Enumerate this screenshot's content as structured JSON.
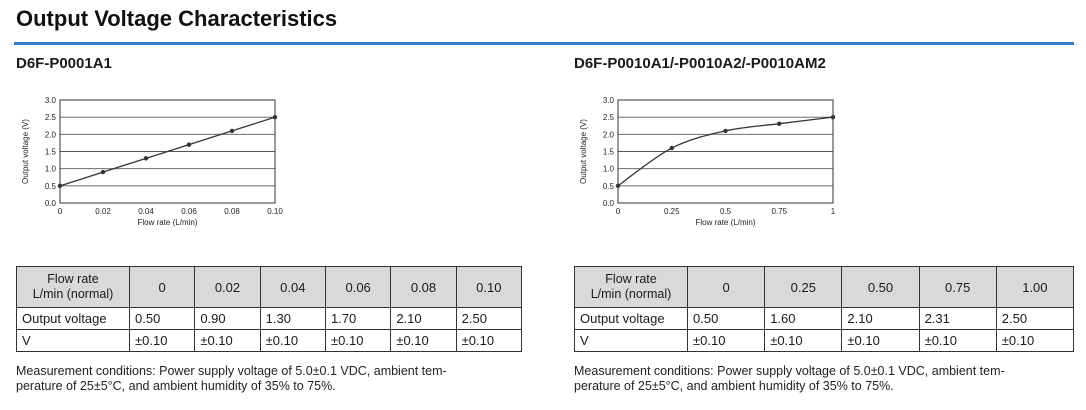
{
  "page_title": "Output Voltage Characteristics",
  "sections": [
    {
      "model": "D6F-P0001A1",
      "table": {
        "header_line1": "Flow rate",
        "header_line2": "L/min (normal)",
        "flow_rates": [
          "0",
          "0.02",
          "0.04",
          "0.06",
          "0.08",
          "0.10"
        ],
        "voltage_label": "Output voltage",
        "voltages": [
          "0.50",
          "0.90",
          "1.30",
          "1.70",
          "2.10",
          "2.50"
        ],
        "unit_label": "V",
        "tolerances": [
          "±0.10",
          "±0.10",
          "±0.10",
          "±0.10",
          "±0.10",
          "±0.10"
        ]
      },
      "note_line1": "Measurement conditions: Power supply voltage of 5.0±0.1 VDC, ambient tem-",
      "note_line2": "perature of 25±5°C, and ambient humidity of 35% to 75%."
    },
    {
      "model": "D6F-P0010A1/-P0010A2/-P0010AM2",
      "table": {
        "header_line1": "Flow rate",
        "header_line2": "L/min (normal)",
        "flow_rates": [
          "0",
          "0.25",
          "0.50",
          "0.75",
          "1.00"
        ],
        "voltage_label": "Output voltage",
        "voltages": [
          "0.50",
          "1.60",
          "2.10",
          "2.31",
          "2.50"
        ],
        "unit_label": "V",
        "tolerances": [
          "±0.10",
          "±0.10",
          "±0.10",
          "±0.10",
          "±0.10"
        ]
      },
      "note_line1": "Measurement conditions: Power supply voltage of 5.0±0.1 VDC, ambient tem-",
      "note_line2": "perature of 25±5°C, and ambient humidity of 35% to 75%."
    }
  ],
  "chart_data": [
    {
      "type": "line",
      "xlabel": "Flow rate (L/min)",
      "ylabel": "Output voltage (V)",
      "xlim": [
        0,
        0.1
      ],
      "ylim": [
        0,
        3.0
      ],
      "x_ticks": [
        "0",
        "0.02",
        "0.04",
        "0.06",
        "0.08",
        "0.10"
      ],
      "x_tick_values": [
        0,
        0.02,
        0.04,
        0.06,
        0.08,
        0.1
      ],
      "y_ticks": [
        "0.0",
        "0.5",
        "1.0",
        "1.5",
        "2.0",
        "2.5",
        "3.0"
      ],
      "y_tick_values": [
        0,
        0.5,
        1.0,
        1.5,
        2.0,
        2.5,
        3.0
      ],
      "grid": "horizontal",
      "series": [
        {
          "x": [
            0,
            0.02,
            0.04,
            0.06,
            0.08,
            0.1
          ],
          "values": [
            0.5,
            0.9,
            1.3,
            1.7,
            2.1,
            2.5
          ]
        }
      ],
      "line_color": "#333333"
    },
    {
      "type": "line",
      "xlabel": "Flow rate (L/min)",
      "ylabel": "Output voltage (V)",
      "xlim": [
        0,
        1
      ],
      "ylim": [
        0,
        3.0
      ],
      "x_ticks": [
        "0",
        "0.25",
        "0.5",
        "0.75",
        "1"
      ],
      "x_tick_values": [
        0,
        0.25,
        0.5,
        0.75,
        1
      ],
      "y_ticks": [
        "0.0",
        "0.5",
        "1.0",
        "1.5",
        "2.0",
        "2.5",
        "3.0"
      ],
      "y_tick_values": [
        0,
        0.5,
        1.0,
        1.5,
        2.0,
        2.5,
        3.0
      ],
      "grid": "horizontal",
      "series": [
        {
          "x": [
            0,
            0.25,
            0.5,
            0.75,
            1.0
          ],
          "values": [
            0.5,
            1.6,
            2.1,
            2.31,
            2.5
          ]
        }
      ],
      "line_color": "#333333"
    }
  ]
}
